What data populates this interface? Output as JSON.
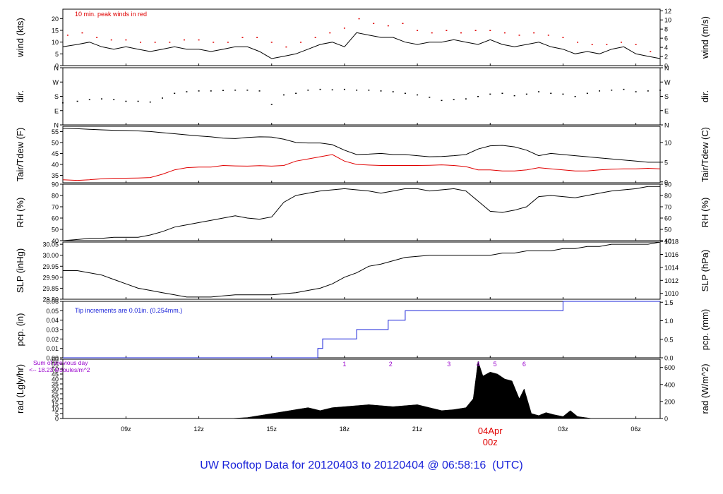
{
  "title": {
    "prefix": "UW Rooftop Data for",
    "start": "20120403",
    "to": "to",
    "end": "20120404",
    "at": "@ 06:58:16  (UTC)"
  },
  "colors": {
    "black": "#000000",
    "red": "#e00000",
    "blue": "#1a23d9",
    "purple": "#9900cc",
    "title": "#1a23d9"
  },
  "chart_data": [
    {
      "id": "wind",
      "type": "line",
      "ylabel": "wind (kts)",
      "ylabel_right": "wind (m/s)",
      "ylim": [
        0,
        24
      ],
      "yticks": [
        0,
        5,
        10,
        15,
        20
      ],
      "right_ylim": [
        0,
        12.35
      ],
      "right_yticks": [
        0,
        2,
        4,
        6,
        8,
        10,
        12
      ],
      "annotation": "10 min. peak winds in red",
      "series": [
        {
          "name": "wind",
          "color": "#000000",
          "style": "line",
          "x": [
            6.4,
            7.0,
            7.5,
            8.0,
            8.5,
            9.0,
            9.5,
            10.0,
            10.5,
            11.0,
            11.5,
            12.0,
            12.5,
            13.0,
            13.5,
            14.0,
            14.5,
            15.0,
            15.5,
            16.0,
            16.5,
            17.0,
            17.5,
            18.0,
            18.5,
            19.0,
            19.5,
            20.0,
            20.5,
            21.0,
            21.5,
            22.0,
            22.5,
            23.0,
            23.5,
            24.0,
            24.5,
            25.0,
            25.5,
            26.0,
            26.5,
            27.0,
            27.5,
            28.0,
            28.5,
            29.0,
            29.5,
            30.0,
            30.5,
            31.0
          ],
          "y": [
            8,
            9,
            10,
            8,
            7,
            8,
            7,
            6,
            7,
            8,
            7,
            7,
            6,
            7,
            8,
            8,
            6,
            3,
            4,
            5,
            7,
            9,
            10,
            8,
            14,
            13,
            12,
            12,
            10,
            9,
            10,
            10,
            11,
            10,
            9,
            11,
            9,
            8,
            9,
            10,
            8,
            7,
            5,
            6,
            5,
            7,
            8,
            5,
            4,
            3
          ]
        },
        {
          "name": "10 min. peak winds",
          "color": "#e00000",
          "style": "dots",
          "x": [
            6.6,
            7.2,
            7.8,
            8.4,
            9.0,
            9.6,
            10.2,
            10.8,
            11.4,
            12.0,
            12.6,
            13.2,
            13.8,
            14.4,
            15.0,
            15.6,
            16.2,
            16.8,
            17.4,
            18.0,
            18.6,
            19.2,
            19.8,
            20.4,
            21.0,
            21.6,
            22.2,
            22.8,
            23.4,
            24.0,
            24.6,
            25.2,
            25.8,
            26.4,
            27.0,
            27.6,
            28.2,
            28.8,
            29.4,
            30.0,
            30.6
          ],
          "y": [
            13,
            14,
            12,
            11,
            11,
            10,
            10,
            10,
            11,
            11,
            10,
            10,
            12,
            12,
            10,
            8,
            10,
            12,
            14,
            16,
            20,
            18,
            17,
            18,
            15,
            14,
            15,
            14,
            15,
            15,
            14,
            13,
            14,
            13,
            12,
            10,
            9,
            9,
            10,
            9,
            6
          ]
        }
      ]
    },
    {
      "id": "dir",
      "type": "scatter",
      "ylabel": "dir.",
      "ylabel_right": "dir.",
      "ylim": [
        0,
        360
      ],
      "yticks": [
        "N",
        "E",
        "S",
        "W",
        "N"
      ],
      "ytick_values": [
        0,
        90,
        180,
        270,
        360
      ],
      "series": [
        {
          "name": "direction",
          "color": "#000000",
          "style": "dots",
          "x": [
            6.4,
            7.0,
            7.5,
            8.0,
            8.5,
            9.0,
            9.5,
            10.0,
            10.5,
            11.0,
            11.5,
            12.0,
            12.5,
            13.0,
            13.5,
            14.0,
            14.5,
            15.0,
            15.5,
            16.0,
            16.5,
            17.0,
            17.5,
            18.0,
            18.5,
            19.0,
            19.5,
            20.0,
            20.5,
            21.0,
            21.5,
            22.0,
            22.5,
            23.0,
            23.5,
            24.0,
            24.5,
            25.0,
            25.5,
            26.0,
            26.5,
            27.0,
            27.5,
            28.0,
            28.5,
            29.0,
            29.5,
            30.0,
            30.5,
            31.0
          ],
          "y": [
            140,
            150,
            160,
            165,
            160,
            150,
            150,
            145,
            170,
            200,
            210,
            215,
            215,
            218,
            220,
            220,
            215,
            130,
            190,
            200,
            220,
            225,
            222,
            225,
            220,
            220,
            215,
            210,
            200,
            190,
            175,
            155,
            160,
            165,
            180,
            195,
            200,
            185,
            195,
            210,
            200,
            195,
            180,
            200,
            215,
            220,
            225,
            210,
            215,
            220
          ]
        }
      ]
    },
    {
      "id": "temp",
      "type": "line",
      "ylabel": "Tair/Tdew (F)",
      "ylabel_right": "Tair/Tdew (C)",
      "ylim": [
        31.6,
        57.4
      ],
      "yticks": [
        35,
        40,
        45,
        50,
        55
      ],
      "right_ylim": [
        -0.22,
        14.1
      ],
      "right_yticks": [
        0,
        5,
        10
      ],
      "series": [
        {
          "name": "Tair",
          "color": "#000000",
          "style": "line",
          "x": [
            6.4,
            7.0,
            7.5,
            8.0,
            8.5,
            9.0,
            9.5,
            10.0,
            10.5,
            11.0,
            11.5,
            12.0,
            12.5,
            13.0,
            13.5,
            14.0,
            14.5,
            15.0,
            15.5,
            16.0,
            16.5,
            17.0,
            17.5,
            18.0,
            18.5,
            19.0,
            19.5,
            20.0,
            20.5,
            21.0,
            21.5,
            22.0,
            22.5,
            23.0,
            23.5,
            24.0,
            24.5,
            25.0,
            25.5,
            26.0,
            26.5,
            27.0,
            27.5,
            28.0,
            28.5,
            29.0,
            29.5,
            30.0,
            30.5,
            31.0
          ],
          "y": [
            56.5,
            56.3,
            56.0,
            55.8,
            55.6,
            55.5,
            55.3,
            55.0,
            54.5,
            54.0,
            53.5,
            53.0,
            52.6,
            52.0,
            51.8,
            52.3,
            52.6,
            52.5,
            51.5,
            50.0,
            49.8,
            49.8,
            49.0,
            46.5,
            44.5,
            44.7,
            45.0,
            44.5,
            44.5,
            44.0,
            43.5,
            43.6,
            44.0,
            44.5,
            47.0,
            48.5,
            48.7,
            48.0,
            46.5,
            44.0,
            45.0,
            44.5,
            44.0,
            43.5,
            43.0,
            42.5,
            42.0,
            41.5,
            41.0,
            41.0
          ]
        },
        {
          "name": "Tdew",
          "color": "#e00000",
          "style": "line",
          "x": [
            6.4,
            7.0,
            7.5,
            8.0,
            8.5,
            9.0,
            9.5,
            10.0,
            10.5,
            11.0,
            11.5,
            12.0,
            12.5,
            13.0,
            13.5,
            14.0,
            14.5,
            15.0,
            15.5,
            16.0,
            16.5,
            17.0,
            17.5,
            18.0,
            18.5,
            19.0,
            19.5,
            20.0,
            20.5,
            21.0,
            21.5,
            22.0,
            22.5,
            23.0,
            23.5,
            24.0,
            24.5,
            25.0,
            25.5,
            26.0,
            26.5,
            27.0,
            27.5,
            28.0,
            28.5,
            29.0,
            29.5,
            30.0,
            30.5,
            31.0
          ],
          "y": [
            33.0,
            32.7,
            33.0,
            33.4,
            33.7,
            33.7,
            33.8,
            34.0,
            35.5,
            37.5,
            38.5,
            38.8,
            38.8,
            39.5,
            39.3,
            39.2,
            39.4,
            39.2,
            39.5,
            41.5,
            42.5,
            43.5,
            44.5,
            41.5,
            40.0,
            39.7,
            39.5,
            39.5,
            39.5,
            39.5,
            39.6,
            39.8,
            39.5,
            39.0,
            37.5,
            37.5,
            37.0,
            37.0,
            37.5,
            38.5,
            38.0,
            37.5,
            37.0,
            37.0,
            37.5,
            37.8,
            38.0,
            38.0,
            38.2,
            38.0
          ]
        }
      ]
    },
    {
      "id": "rh",
      "type": "line",
      "ylabel": "RH (%)",
      "ylabel_right": "RH (%)",
      "ylim": [
        40,
        90
      ],
      "yticks": [
        40,
        50,
        60,
        70,
        80,
        90
      ],
      "series": [
        {
          "name": "RH",
          "color": "#000000",
          "style": "line",
          "x": [
            6.4,
            7.0,
            7.5,
            8.0,
            8.5,
            9.0,
            9.5,
            10.0,
            10.5,
            11.0,
            11.5,
            12.0,
            12.5,
            13.0,
            13.5,
            14.0,
            14.5,
            15.0,
            15.5,
            16.0,
            16.5,
            17.0,
            17.5,
            18.0,
            18.5,
            19.0,
            19.5,
            20.0,
            20.5,
            21.0,
            21.5,
            22.0,
            22.5,
            23.0,
            23.5,
            24.0,
            24.5,
            25.0,
            25.5,
            26.0,
            26.5,
            27.0,
            27.5,
            28.0,
            28.5,
            29.0,
            29.5,
            30.0,
            30.5,
            31.0
          ],
          "y": [
            40,
            41,
            42,
            42,
            43,
            43,
            43,
            45,
            48,
            52,
            54,
            56,
            58,
            60,
            62,
            60,
            59,
            61,
            74,
            80,
            82,
            84,
            85,
            86,
            85,
            84,
            82,
            84,
            86,
            86,
            84,
            85,
            86,
            84,
            75,
            66,
            65,
            67,
            70,
            79,
            80,
            79,
            78,
            80,
            82,
            84,
            85,
            86,
            88,
            88
          ]
        }
      ]
    },
    {
      "id": "slp",
      "type": "line",
      "ylabel": "SLP (inHg)",
      "ylabel_right": "SLP (hPa)",
      "ylim": [
        29.8,
        30.06
      ],
      "yticks": [
        29.8,
        29.85,
        29.9,
        29.95,
        30.0,
        30.05
      ],
      "right_ylim": [
        1009.1,
        1017.9
      ],
      "right_yticks": [
        1010,
        1012,
        1014,
        1016,
        1018
      ],
      "series": [
        {
          "name": "SLP",
          "color": "#000000",
          "style": "line",
          "x": [
            6.4,
            7.0,
            7.5,
            8.0,
            8.5,
            9.0,
            9.5,
            10.0,
            10.5,
            11.0,
            11.5,
            12.0,
            12.5,
            13.0,
            13.5,
            14.0,
            14.5,
            15.0,
            15.5,
            16.0,
            16.5,
            17.0,
            17.5,
            18.0,
            18.5,
            19.0,
            19.5,
            20.0,
            20.5,
            21.0,
            21.5,
            22.0,
            22.5,
            23.0,
            23.5,
            24.0,
            24.5,
            25.0,
            25.5,
            26.0,
            26.5,
            27.0,
            27.5,
            28.0,
            28.5,
            29.0,
            29.5,
            30.0,
            30.5,
            31.0
          ],
          "y": [
            29.93,
            29.93,
            29.92,
            29.91,
            29.89,
            29.87,
            29.85,
            29.84,
            29.83,
            29.82,
            29.81,
            29.81,
            29.81,
            29.815,
            29.82,
            29.82,
            29.82,
            29.82,
            29.825,
            29.83,
            29.84,
            29.85,
            29.87,
            29.9,
            29.92,
            29.95,
            29.96,
            29.975,
            29.99,
            29.995,
            30.0,
            30.0,
            30.0,
            30.0,
            30.0,
            30.0,
            30.01,
            30.01,
            30.02,
            30.02,
            30.02,
            30.03,
            30.03,
            30.04,
            30.04,
            30.05,
            30.05,
            30.05,
            30.05,
            30.06
          ]
        }
      ]
    },
    {
      "id": "pcp",
      "type": "line",
      "ylabel": "pcp. (in)",
      "ylabel_right": "pcp. (mm)",
      "ylim": [
        0,
        0.06
      ],
      "yticks": [
        0,
        0.01,
        0.02,
        0.03,
        0.04,
        0.05,
        0.06
      ],
      "right_ylim": [
        0,
        1.524
      ],
      "right_yticks": [
        0,
        0.5,
        1,
        1.5
      ],
      "annotation": "Tip increments are 0.01in. (0.254mm.)",
      "series": [
        {
          "name": "precipitation",
          "color": "#1a23d9",
          "style": "step",
          "x": [
            6.4,
            16.9,
            17.1,
            18.5,
            19.8,
            20.5,
            27.0,
            31.0
          ],
          "y": [
            0,
            0.01,
            0.02,
            0.03,
            0.04,
            0.05,
            0.06,
            0.06
          ]
        }
      ]
    },
    {
      "id": "rad",
      "type": "area",
      "ylabel": "rad (Lgly/hr)",
      "ylabel_right": "rad (W/m^2)",
      "ylim": [
        0,
        60
      ],
      "yticks": [
        0,
        5,
        10,
        15,
        20,
        25,
        30,
        35,
        40,
        45,
        50,
        55,
        60
      ],
      "right_ylim": [
        0,
        697.5
      ],
      "right_yticks": [
        0,
        200,
        400,
        600
      ],
      "annotations": [
        "Sum of previous day",
        "<-- 18.23 MJoules/m^2"
      ],
      "marker_labels": [
        "1",
        "2",
        "3",
        "4",
        "5",
        "6"
      ],
      "marker_x": [
        18.0,
        19.9,
        22.3,
        23.5,
        24.2,
        25.4
      ],
      "series": [
        {
          "name": "radiation",
          "color": "#000000",
          "style": "area",
          "x": [
            13.3,
            14.0,
            14.5,
            15.0,
            15.5,
            16.0,
            16.5,
            17.0,
            17.5,
            18.0,
            18.5,
            19.0,
            19.5,
            20.0,
            20.5,
            21.0,
            21.5,
            22.0,
            22.5,
            23.0,
            23.3,
            23.5,
            23.7,
            24.0,
            24.3,
            24.6,
            24.9,
            25.2,
            25.4,
            25.7,
            26.0,
            26.3,
            26.6,
            27.0,
            27.3,
            27.6,
            27.9,
            28.2
          ],
          "y": [
            0,
            1,
            3,
            5,
            7,
            9,
            11,
            8,
            11,
            12,
            13,
            14,
            13,
            12,
            13,
            14,
            11,
            8,
            9,
            11,
            20,
            58,
            43,
            47,
            45,
            40,
            38,
            20,
            30,
            5,
            3,
            6,
            4,
            2,
            8,
            2,
            1,
            0
          ]
        }
      ]
    }
  ],
  "x_axis": {
    "range_hours": [
      6.4,
      31.0
    ],
    "tick_labels": [
      "09z",
      "12z",
      "15z",
      "18z",
      "21z",
      "00z",
      "03z",
      "06z"
    ],
    "tick_hours": [
      9,
      12,
      15,
      18,
      21,
      24,
      27,
      30
    ],
    "day_label": "04Apr",
    "day_label_sub": "00z"
  }
}
